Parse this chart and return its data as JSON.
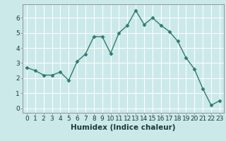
{
  "x": [
    0,
    1,
    2,
    3,
    4,
    5,
    6,
    7,
    8,
    9,
    10,
    11,
    12,
    13,
    14,
    15,
    16,
    17,
    18,
    19,
    20,
    21,
    22,
    23
  ],
  "y": [
    2.7,
    2.5,
    2.2,
    2.2,
    2.4,
    1.85,
    3.1,
    3.6,
    4.75,
    4.75,
    3.65,
    5.0,
    5.5,
    6.5,
    5.55,
    6.0,
    5.5,
    5.1,
    4.45,
    3.35,
    2.6,
    1.3,
    0.2,
    0.5
  ],
  "line_color": "#2d7d6e",
  "marker": "D",
  "marker_size": 2.5,
  "line_width": 1.0,
  "xlabel": "Humidex (Indice chaleur)",
  "xlim": [
    -0.5,
    23.5
  ],
  "ylim": [
    -0.3,
    6.9
  ],
  "yticks": [
    0,
    1,
    2,
    3,
    4,
    5,
    6
  ],
  "xticks": [
    0,
    1,
    2,
    3,
    4,
    5,
    6,
    7,
    8,
    9,
    10,
    11,
    12,
    13,
    14,
    15,
    16,
    17,
    18,
    19,
    20,
    21,
    22,
    23
  ],
  "bg_color": "#cce9e9",
  "grid_color": "#ffffff",
  "xlabel_fontsize": 7.5,
  "tick_fontsize": 6.5,
  "spine_color": "#888888"
}
